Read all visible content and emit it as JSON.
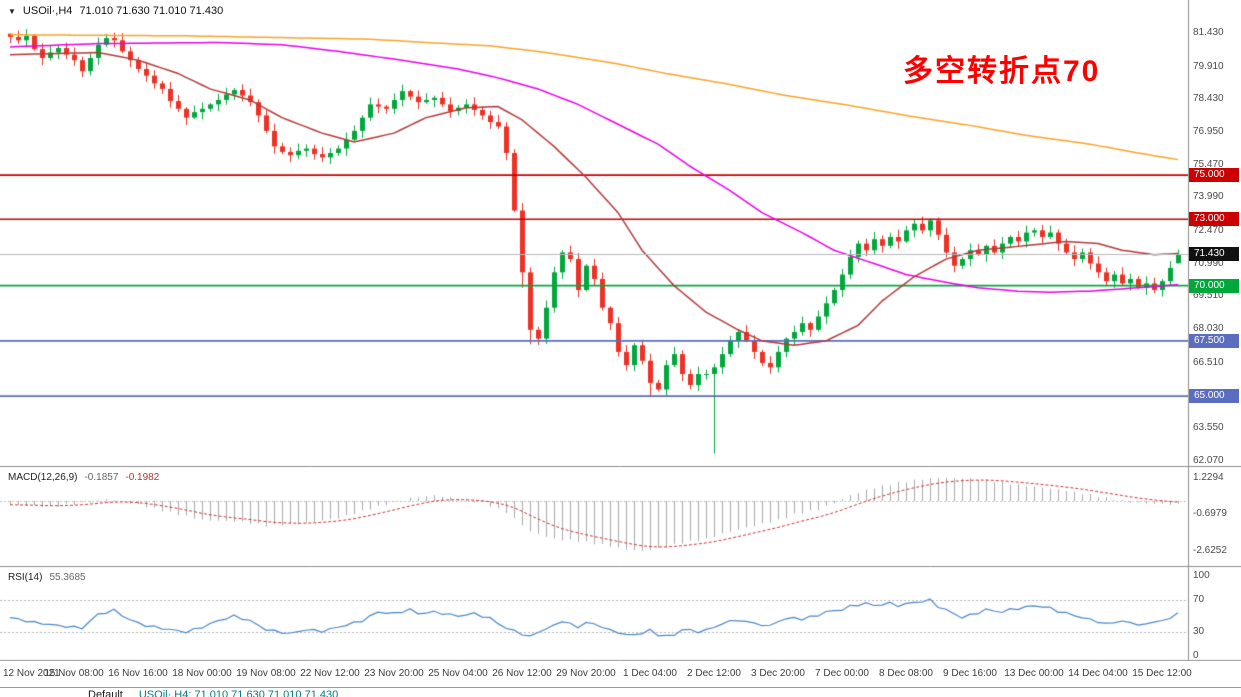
{
  "symbol_bar": {
    "indicator_arrow": "▼",
    "symbol": "USOil·,H4",
    "ohlc": "71.010 71.630 71.010 71.430"
  },
  "annotation": {
    "text": "多空转折点70",
    "color": "#ff0000"
  },
  "panels": {
    "macd": {
      "title": "MACD(12,26,9)",
      "value_main": "-0.1857",
      "value_signal": "-0.1982",
      "axis_labels": [
        "1.2294",
        "-0.6979",
        "-2.6252"
      ]
    },
    "rsi": {
      "title": "RSI(14)",
      "value": "55.3685",
      "axis_labels": [
        "100",
        "70",
        "30",
        "0"
      ]
    }
  },
  "bottom_bar": {
    "items": [
      {
        "text": "Default",
        "color": "#1a1a1a"
      },
      {
        "text": "USOil·,H4: 71.010 71.630 71.010 71.430",
        "color": "#007d7d"
      }
    ]
  },
  "chart_data": {
    "type": "candlestick",
    "symbol": "USOil",
    "timeframe": "H4",
    "last_bar": {
      "open": "71.010",
      "high": "71.630",
      "low": "71.010",
      "close": "71.430"
    },
    "colors": {
      "bull": "#00a83c",
      "bear": "#ee3124"
    },
    "bars": {
      "closes": [
        81.25,
        81.1,
        81.3,
        80.7,
        80.3,
        80.55,
        80.75,
        80.45,
        80.2,
        79.7,
        80.3,
        80.9,
        81.2,
        81.1,
        80.6,
        80.2,
        79.8,
        79.5,
        79.15,
        78.9,
        78.35,
        78.0,
        77.6,
        77.85,
        78.0,
        78.2,
        78.4,
        78.65,
        78.85,
        78.6,
        78.3,
        77.7,
        77.0,
        76.3,
        76.05,
        75.9,
        76.1,
        76.2,
        75.95,
        75.8,
        76.0,
        76.2,
        76.6,
        77.0,
        77.6,
        78.2,
        78.1,
        78.0,
        78.4,
        78.8,
        78.55,
        78.3,
        78.4,
        78.5,
        78.2,
        77.9,
        78.05,
        78.2,
        77.95,
        77.7,
        77.4,
        77.2,
        76.0,
        73.4,
        70.6,
        68.0,
        67.6,
        69.0,
        70.6,
        71.5,
        71.2,
        69.8,
        70.9,
        70.3,
        69.0,
        68.3,
        67.0,
        66.4,
        67.3,
        66.6,
        65.6,
        65.3,
        66.4,
        66.9,
        66.0,
        65.5,
        66.0,
        66.0,
        66.3,
        66.9,
        67.5,
        67.9,
        67.5,
        67.0,
        66.5,
        66.3,
        67.0,
        67.6,
        67.9,
        68.3,
        68.0,
        68.6,
        69.2,
        69.8,
        70.5,
        71.3,
        71.9,
        71.6,
        72.1,
        71.8,
        72.2,
        72.0,
        72.5,
        72.8,
        72.5,
        72.95,
        72.3,
        71.5,
        70.9,
        71.2,
        71.6,
        71.4,
        71.8,
        71.5,
        71.9,
        72.2,
        72.0,
        72.4,
        72.5,
        72.2,
        72.4,
        71.9,
        71.5,
        71.2,
        71.5,
        71.0,
        70.6,
        70.2,
        70.5,
        70.1,
        70.3,
        69.9,
        70.1,
        69.8,
        70.2,
        70.8,
        71.43
      ],
      "overrides": {
        "0": {
          "open": 81.4
        },
        "13": {
          "high": 81.45
        },
        "64": {
          "low": 69.9
        },
        "65": {
          "low": 67.35
        },
        "80": {
          "low": 64.95
        },
        "88": {
          "low": 62.4
        },
        "115": {
          "high": 73.05
        },
        "146": {
          "open": 71.01,
          "high": 71.63,
          "low": 71.01,
          "close": 71.43
        }
      }
    },
    "moving_averages": [
      {
        "name": "ma-slow",
        "color": "#f7a428",
        "points": [
          [
            0,
            81.35
          ],
          [
            22,
            81.3
          ],
          [
            45,
            81.15
          ],
          [
            52,
            81.0
          ],
          [
            60,
            80.85
          ],
          [
            67,
            80.55
          ],
          [
            75,
            80.1
          ],
          [
            82,
            79.6
          ],
          [
            90,
            79.1
          ],
          [
            97,
            78.6
          ],
          [
            105,
            78.15
          ],
          [
            112,
            77.7
          ],
          [
            120,
            77.25
          ],
          [
            127,
            76.8
          ],
          [
            135,
            76.4
          ],
          [
            141,
            76.0
          ],
          [
            146,
            75.7
          ]
        ]
      },
      {
        "name": "ma-mid",
        "color": "#e800e8",
        "points": [
          [
            0,
            80.8
          ],
          [
            11,
            80.95
          ],
          [
            26,
            81.0
          ],
          [
            34,
            80.9
          ],
          [
            41,
            80.6
          ],
          [
            49,
            80.2
          ],
          [
            56,
            79.8
          ],
          [
            61,
            79.4
          ],
          [
            66,
            78.9
          ],
          [
            71,
            78.2
          ],
          [
            76,
            77.3
          ],
          [
            81,
            76.4
          ],
          [
            85,
            75.4
          ],
          [
            90,
            74.3
          ],
          [
            94,
            73.3
          ],
          [
            99,
            72.4
          ],
          [
            103,
            71.6
          ],
          [
            108,
            71.0
          ],
          [
            112,
            70.5
          ],
          [
            117,
            70.15
          ],
          [
            121,
            69.9
          ],
          [
            126,
            69.75
          ],
          [
            130,
            69.7
          ],
          [
            135,
            69.75
          ],
          [
            139,
            69.85
          ],
          [
            143,
            69.95
          ],
          [
            146,
            70.05
          ]
        ]
      },
      {
        "name": "ma-fast",
        "color": "#b23a3a",
        "points": [
          [
            0,
            80.45
          ],
          [
            6,
            80.5
          ],
          [
            11,
            80.55
          ],
          [
            16,
            80.2
          ],
          [
            21,
            79.6
          ],
          [
            25,
            78.9
          ],
          [
            30,
            78.4
          ],
          [
            34,
            77.6
          ],
          [
            39,
            76.9
          ],
          [
            43,
            76.5
          ],
          [
            48,
            76.9
          ],
          [
            52,
            77.6
          ],
          [
            57,
            78.05
          ],
          [
            61,
            78.1
          ],
          [
            64,
            77.5
          ],
          [
            68,
            76.3
          ],
          [
            72,
            74.9
          ],
          [
            76,
            73.3
          ],
          [
            79,
            71.6
          ],
          [
            83,
            70.0
          ],
          [
            87,
            68.8
          ],
          [
            91,
            68.0
          ],
          [
            94,
            67.5
          ],
          [
            98,
            67.3
          ],
          [
            102,
            67.5
          ],
          [
            106,
            68.2
          ],
          [
            109,
            69.3
          ],
          [
            113,
            70.4
          ],
          [
            117,
            71.2
          ],
          [
            121,
            71.6
          ],
          [
            124,
            71.7
          ],
          [
            128,
            71.85
          ],
          [
            132,
            72.0
          ],
          [
            136,
            71.9
          ],
          [
            139,
            71.6
          ],
          [
            143,
            71.4
          ],
          [
            146,
            71.45
          ]
        ]
      }
    ],
    "levels": [
      {
        "price": 75.0,
        "label": "75.000",
        "color": "#cc0000"
      },
      {
        "price": 73.0,
        "label": "73.000",
        "color": "#cc0000"
      },
      {
        "price": 70.0,
        "label": "70.000",
        "color": "#00a83c"
      },
      {
        "price": 67.5,
        "label": "67.500",
        "color": "#5b6dbe"
      },
      {
        "price": 65.0,
        "label": "65.000",
        "color": "#5b6dbe"
      }
    ],
    "current_price": {
      "value": 71.43,
      "label": "71.430",
      "badge_color": "#111111",
      "line_color": "#b9b9b9"
    },
    "price_axis_ticks": [
      "81.430",
      "79.910",
      "78.430",
      "76.950",
      "75.470",
      "73.990",
      "72.470",
      "70.990",
      "69.510",
      "68.030",
      "66.510",
      "63.550",
      "62.070"
    ],
    "badges": [
      {
        "value": "75.000",
        "color": "#cc0000"
      },
      {
        "value": "73.000",
        "color": "#cc0000"
      },
      {
        "value": "71.430",
        "color": "#111111"
      },
      {
        "value": "70.000",
        "color": "#00a83c"
      },
      {
        "value": "67.500",
        "color": "#5b6dbe"
      },
      {
        "value": "65.000",
        "color": "#5b6dbe"
      }
    ],
    "macd": {
      "histogram_color": "#a9a9a9",
      "signal_color": "#cc3333",
      "max": 1.2294,
      "min": -2.6252,
      "current": -0.1857,
      "signal_current": -0.1982,
      "points": [
        [
          0,
          -0.2
        ],
        [
          5,
          -0.3
        ],
        [
          9,
          -0.1
        ],
        [
          12,
          0.1
        ],
        [
          15,
          -0.1
        ],
        [
          20,
          -0.6
        ],
        [
          24,
          -1.0
        ],
        [
          29,
          -1.1
        ],
        [
          32,
          -1.3
        ],
        [
          36,
          -1.2
        ],
        [
          41,
          -0.9
        ],
        [
          45,
          -0.4
        ],
        [
          50,
          0.15
        ],
        [
          53,
          0.3
        ],
        [
          56,
          0.1
        ],
        [
          59,
          -0.1
        ],
        [
          62,
          -0.6
        ],
        [
          65,
          -1.6
        ],
        [
          68,
          -2.0
        ],
        [
          71,
          -2.1
        ],
        [
          74,
          -2.3
        ],
        [
          77,
          -2.55
        ],
        [
          79,
          -2.6252
        ],
        [
          81,
          -2.5
        ],
        [
          84,
          -2.2
        ],
        [
          87,
          -2.0
        ],
        [
          90,
          -1.6
        ],
        [
          93,
          -1.3
        ],
        [
          96,
          -1.0
        ],
        [
          98,
          -0.7
        ],
        [
          101,
          -0.45
        ],
        [
          103,
          -0.1
        ],
        [
          105,
          0.3
        ],
        [
          108,
          0.7
        ],
        [
          111,
          0.95
        ],
        [
          114,
          1.15
        ],
        [
          116,
          1.2294
        ],
        [
          119,
          1.2
        ],
        [
          122,
          1.1
        ],
        [
          125,
          0.9
        ],
        [
          128,
          0.75
        ],
        [
          131,
          0.6
        ],
        [
          134,
          0.4
        ],
        [
          137,
          0.15
        ],
        [
          140,
          -0.05
        ],
        [
          143,
          -0.15
        ],
        [
          146,
          -0.1857
        ]
      ]
    },
    "rsi": {
      "color": "#4a87c7",
      "current": 55.3685,
      "levels": [
        70,
        30
      ],
      "points": [
        [
          0,
          48
        ],
        [
          3,
          42
        ],
        [
          6,
          38
        ],
        [
          9,
          35
        ],
        [
          11,
          52
        ],
        [
          13,
          57
        ],
        [
          15,
          45
        ],
        [
          17,
          38
        ],
        [
          20,
          33
        ],
        [
          22,
          30
        ],
        [
          24,
          36
        ],
        [
          26,
          44
        ],
        [
          28,
          50
        ],
        [
          30,
          44
        ],
        [
          32,
          33
        ],
        [
          35,
          28
        ],
        [
          37,
          33
        ],
        [
          39,
          31
        ],
        [
          41,
          36
        ],
        [
          44,
          44
        ],
        [
          46,
          55
        ],
        [
          48,
          53
        ],
        [
          50,
          58
        ],
        [
          51,
          53
        ],
        [
          53,
          55
        ],
        [
          56,
          50
        ],
        [
          58,
          53
        ],
        [
          60,
          47
        ],
        [
          62,
          35
        ],
        [
          65,
          24
        ],
        [
          66,
          30
        ],
        [
          68,
          38
        ],
        [
          69,
          44
        ],
        [
          71,
          36
        ],
        [
          72,
          42
        ],
        [
          74,
          37
        ],
        [
          75,
          32
        ],
        [
          77,
          27
        ],
        [
          78,
          26
        ],
        [
          80,
          32
        ],
        [
          81,
          26
        ],
        [
          83,
          25
        ],
        [
          84,
          34
        ],
        [
          86,
          30
        ],
        [
          87,
          33
        ],
        [
          88,
          35
        ],
        [
          89,
          41
        ],
        [
          91,
          45
        ],
        [
          92,
          43
        ],
        [
          94,
          39
        ],
        [
          95,
          37
        ],
        [
          96,
          44
        ],
        [
          98,
          48
        ],
        [
          99,
          46
        ],
        [
          101,
          51
        ],
        [
          102,
          55
        ],
        [
          104,
          58
        ],
        [
          105,
          62
        ],
        [
          107,
          66
        ],
        [
          108,
          63
        ],
        [
          110,
          66
        ],
        [
          111,
          63
        ],
        [
          113,
          67
        ],
        [
          114,
          68
        ],
        [
          115,
          70
        ],
        [
          116,
          62
        ],
        [
          118,
          53
        ],
        [
          119,
          48
        ],
        [
          121,
          54
        ],
        [
          122,
          58
        ],
        [
          124,
          55
        ],
        [
          125,
          58
        ],
        [
          127,
          61
        ],
        [
          128,
          63
        ],
        [
          130,
          60
        ],
        [
          131,
          56
        ],
        [
          133,
          51
        ],
        [
          134,
          48
        ],
        [
          136,
          43
        ],
        [
          137,
          40
        ],
        [
          139,
          44
        ],
        [
          140,
          41
        ],
        [
          142,
          39
        ],
        [
          143,
          43
        ],
        [
          145,
          46
        ],
        [
          146,
          55.3685
        ]
      ]
    },
    "time_labels": [
      {
        "text": "12 Nov 2021",
        "bar": 0
      },
      {
        "text": "15 Nov 08:00",
        "bar": 8
      },
      {
        "text": "16 Nov 16:00",
        "bar": 16
      },
      {
        "text": "18 Nov 00:00",
        "bar": 24
      },
      {
        "text": "19 Nov 08:00",
        "bar": 32
      },
      {
        "text": "22 Nov 12:00",
        "bar": 40
      },
      {
        "text": "23 Nov 20:00",
        "bar": 48
      },
      {
        "text": "25 Nov 04:00",
        "bar": 56
      },
      {
        "text": "26 Nov 12:00",
        "bar": 64
      },
      {
        "text": "29 Nov 20:00",
        "bar": 72
      },
      {
        "text": "1 Dec 04:00",
        "bar": 80
      },
      {
        "text": "2 Dec 12:00",
        "bar": 88
      },
      {
        "text": "3 Dec 20:00",
        "bar": 96
      },
      {
        "text": "7 Dec 00:00",
        "bar": 104
      },
      {
        "text": "8 Dec 08:00",
        "bar": 112
      },
      {
        "text": "9 Dec 16:00",
        "bar": 120
      },
      {
        "text": "13 Dec 00:00",
        "bar": 128
      },
      {
        "text": "14 Dec 04:00",
        "bar": 136
      },
      {
        "text": "15 Dec 12:00",
        "bar": 144
      }
    ]
  }
}
